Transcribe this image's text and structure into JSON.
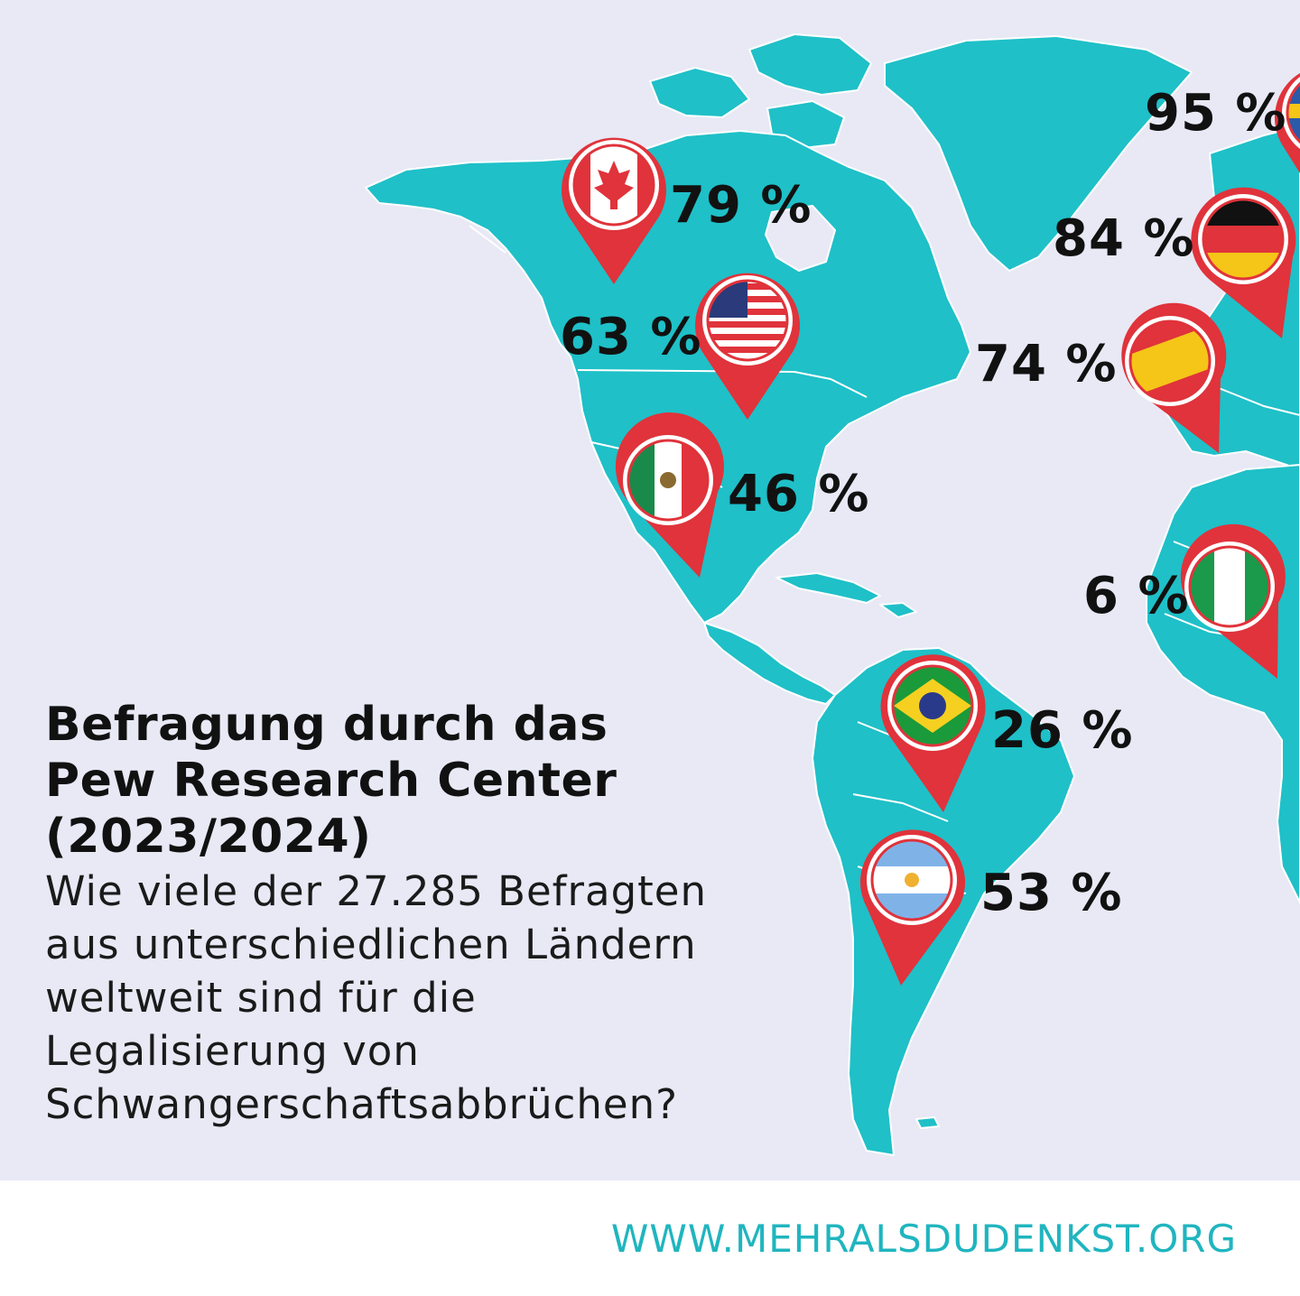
{
  "title": {
    "line1": "Befragung durch das",
    "line2": "Pew Research Center",
    "line3": "(2023/2024)"
  },
  "question": {
    "line1": "Wie viele der 27.285 Befragten",
    "line2": "aus unterschiedlichen Ländern",
    "line3": "weltweit sind für die",
    "line4": "Legalisierung von",
    "line5": "Schwangerschaftsabbrüchen?"
  },
  "markers": [
    {
      "country_flag": "canada-flag-icon",
      "label": "79 %",
      "value": 79
    },
    {
      "country_flag": "usa-flag-icon",
      "label": "63 %",
      "value": 63
    },
    {
      "country_flag": "mexico-flag-icon",
      "label": "46 %",
      "value": 46
    },
    {
      "country_flag": "brazil-flag-icon",
      "label": "26 %",
      "value": 26
    },
    {
      "country_flag": "argentina-flag-icon",
      "label": "53 %",
      "value": 53
    },
    {
      "country_flag": "germany-flag-icon",
      "label": "84 %",
      "value": 84
    },
    {
      "country_flag": "spain-flag-icon",
      "label": "74 %",
      "value": 74
    },
    {
      "country_flag": "nigeria-flag-icon",
      "label": "6 %",
      "value": 6
    },
    {
      "country_flag": "sweden-flag-icon",
      "label": "95 %",
      "value": 95
    }
  ],
  "footer": {
    "website": "WWW.MEHRALSDUDENKST.ORG"
  },
  "colors": {
    "background": "#e8e9f5",
    "land": "#1fc0c8",
    "pin": "#e0333b",
    "website_text": "#20b5bf"
  }
}
